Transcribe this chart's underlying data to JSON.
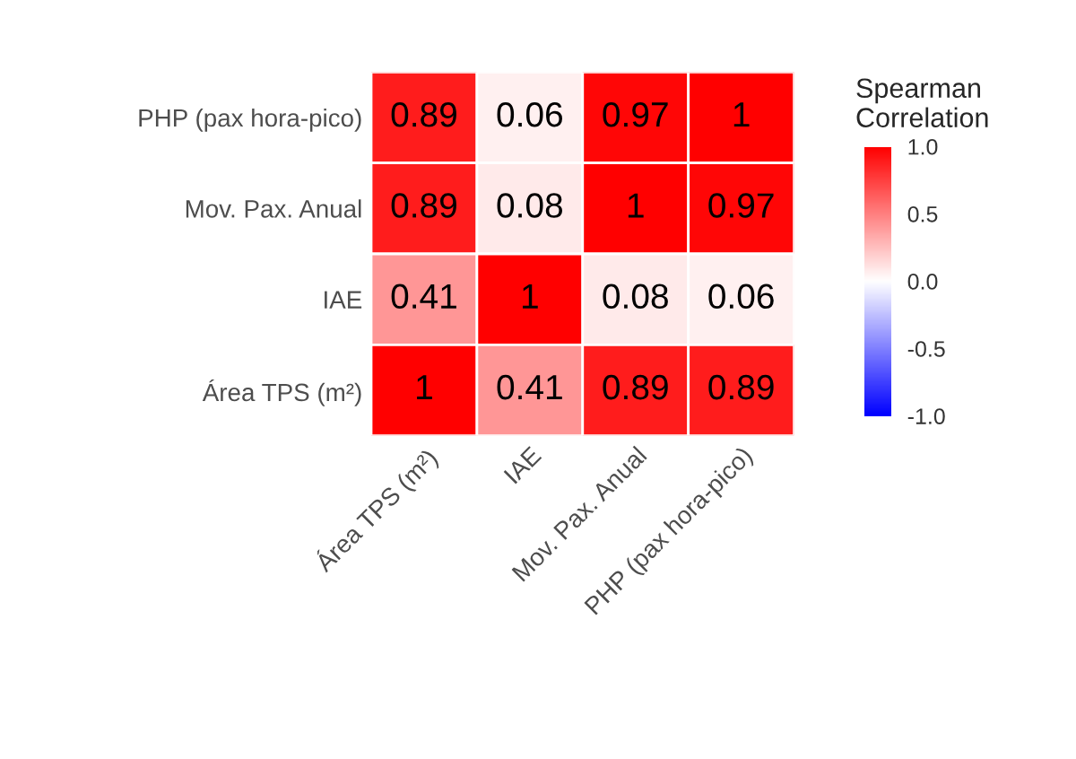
{
  "chart_data": {
    "type": "heatmap",
    "categories": [
      "Área TPS (m²)",
      "IAE",
      "Mov. Pax. Anual",
      "PHP (pax hora-pico)"
    ],
    "y_categories": [
      "PHP (pax hora-pico)",
      "Mov. Pax. Anual",
      "IAE",
      "Área TPS (m²)"
    ],
    "cells": [
      [
        0.89,
        0.06,
        0.97,
        1
      ],
      [
        0.89,
        0.08,
        1,
        0.97
      ],
      [
        0.41,
        1,
        0.08,
        0.06
      ],
      [
        1,
        0.41,
        0.89,
        0.89
      ]
    ],
    "data_labels": true,
    "clabel": "Spearman\nCorrelation",
    "clim": [
      -1,
      1
    ],
    "cticks": [
      {
        "value": 1,
        "label": "1.0"
      },
      {
        "value": 0.5,
        "label": "0.5"
      },
      {
        "value": 0,
        "label": "0.0"
      },
      {
        "value": -0.5,
        "label": "-0.5"
      },
      {
        "value": -1,
        "label": "-1.0"
      }
    ],
    "colors": [
      "#0000ff",
      "#ffffff",
      "#ff0000"
    ]
  }
}
